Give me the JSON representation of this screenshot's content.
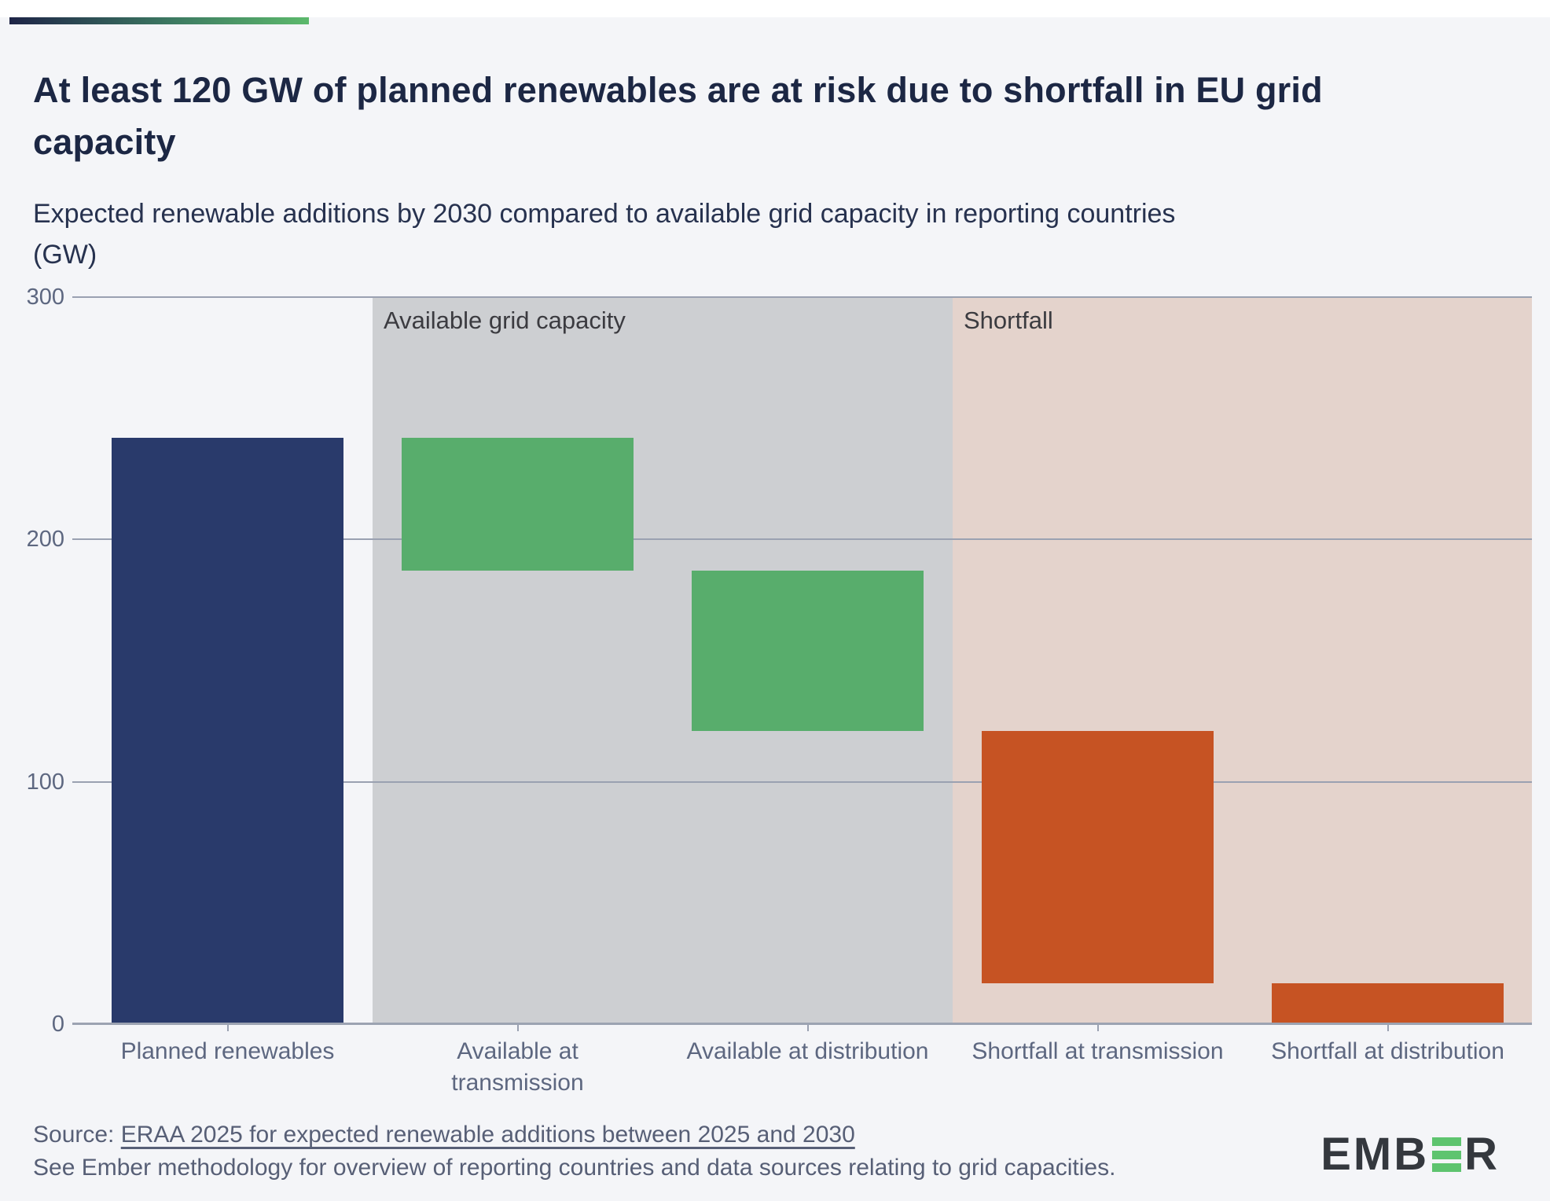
{
  "chart_data": {
    "type": "bar",
    "subtype": "waterfall",
    "title_lines": [
      "At least 120 GW of planned renewables are at risk due to shortfall in EU grid",
      "capacity"
    ],
    "subtitle_lines": [
      "Expected renewable additions by 2030 compared to available grid capacity in reporting countries",
      "(GW)"
    ],
    "unit": "GW",
    "ylim": [
      0,
      300
    ],
    "yticks": [
      0,
      100,
      200,
      300
    ],
    "grid": true,
    "legend": "none",
    "categories": [
      "Planned renewables",
      "Available at transmission",
      "Available at distribution",
      "Shortfall at transmission",
      "Shortfall at distribution"
    ],
    "category_label_lines": [
      [
        "Planned renewables"
      ],
      [
        "Available at",
        "transmission"
      ],
      [
        "Available at distribution"
      ],
      [
        "Shortfall at transmission"
      ],
      [
        "Shortfall at distribution"
      ]
    ],
    "bars": [
      {
        "category": "Planned renewables",
        "from": 0,
        "to": 242,
        "value": 242,
        "color_key": "navy"
      },
      {
        "category": "Available at transmission",
        "from": 187,
        "to": 242,
        "value": 55,
        "color_key": "green"
      },
      {
        "category": "Available at distribution",
        "from": 121,
        "to": 187,
        "value": 66,
        "color_key": "green"
      },
      {
        "category": "Shortfall at transmission",
        "from": 17,
        "to": 121,
        "value": 104,
        "color_key": "orange"
      },
      {
        "category": "Shortfall at distribution",
        "from": 0,
        "to": 17,
        "value": 17,
        "color_key": "orange"
      }
    ],
    "regions": [
      {
        "label": "Available grid capacity",
        "from_category_index": 1,
        "to_category_index": 2,
        "color": "#cdcfd2"
      },
      {
        "label": "Shortfall",
        "from_category_index": 3,
        "to_category_index": 4,
        "color": "#e4d3cc"
      }
    ]
  },
  "colors": {
    "navy": "#293a6b",
    "green": "#58ad6c",
    "orange": "#c65323",
    "accent_from": "#1e2447",
    "accent_to": "#5cb96c",
    "logo_green": "#5ec46f"
  },
  "footer": {
    "source_prefix": "Source: ",
    "source_link": "ERAA 2025 for expected renewable additions between 2025 and 2030",
    "methodology_note": "See Ember methodology for overview of reporting countries and data sources relating to grid capacities.",
    "logo_letters_pre": "EMB",
    "logo_letters_post": "R"
  }
}
